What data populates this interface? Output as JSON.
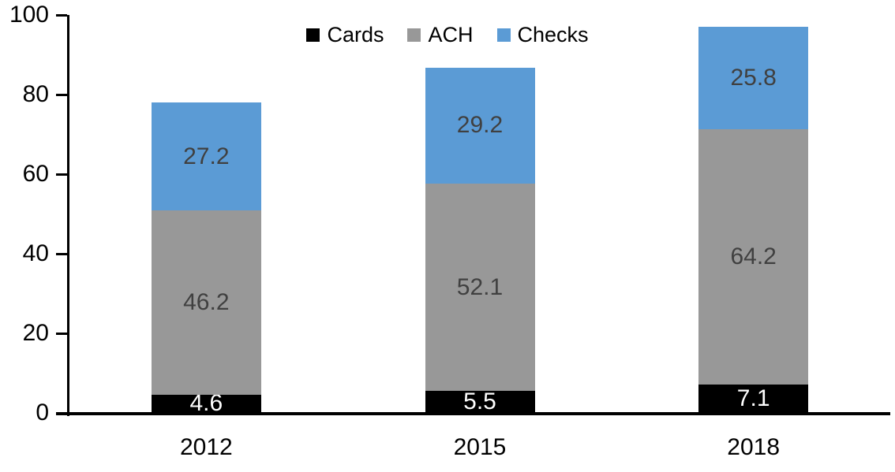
{
  "chart_data": {
    "type": "bar",
    "stacked": true,
    "title": "",
    "xlabel": "",
    "ylabel": "",
    "categories": [
      "2012",
      "2015",
      "2018"
    ],
    "series": [
      {
        "name": "Cards",
        "color": "#000000",
        "label_color": "#FFFFFF",
        "values": [
          4.6,
          5.5,
          7.1
        ]
      },
      {
        "name": "ACH",
        "color": "#989898",
        "label_color": "#404040",
        "values": [
          46.2,
          52.1,
          64.2
        ]
      },
      {
        "name": "Checks",
        "color": "#5B9BD5",
        "label_color": "#404040",
        "values": [
          27.2,
          29.2,
          25.8
        ]
      }
    ],
    "totals": [
      78.0,
      86.8,
      97.1
    ],
    "yticks": [
      0,
      20,
      40,
      60,
      80,
      100
    ],
    "ylim": [
      0,
      100
    ],
    "value_format": "one_decimal",
    "legend_position": "top",
    "grid": false,
    "axis_color": "#000000",
    "text_color": "#000000"
  }
}
